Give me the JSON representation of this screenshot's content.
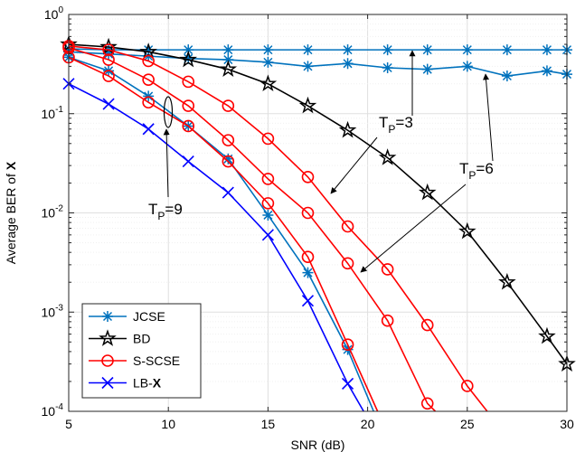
{
  "chart_data": {
    "type": "line",
    "xlabel": "SNR (dB)",
    "ylabel_prefix": "Average BER of ",
    "ylabel_bold": "X",
    "xlim": [
      5,
      30
    ],
    "ylim": [
      0.0001,
      1
    ],
    "yscale": "log",
    "grid": true,
    "legend_position": "bottom-left",
    "x_ticks": [
      5,
      10,
      15,
      20,
      25,
      30
    ],
    "y_ticks": [
      {
        "value": 0.0001,
        "base": "10",
        "exp": "-4"
      },
      {
        "value": 0.001,
        "base": "10",
        "exp": "-3"
      },
      {
        "value": 0.01,
        "base": "10",
        "exp": "-2"
      },
      {
        "value": 0.1,
        "base": "10",
        "exp": "-1"
      },
      {
        "value": 1,
        "base": "10",
        "exp": "0"
      }
    ],
    "series": [
      {
        "name": "JCSE",
        "color": "#0072BD",
        "marker": "asterisk",
        "variant": "T_P=3",
        "x": [
          5,
          7,
          9,
          11,
          13,
          15,
          17,
          19,
          21,
          23,
          25,
          27,
          29,
          30
        ],
        "y": [
          0.45,
          0.44,
          0.44,
          0.44,
          0.44,
          0.44,
          0.44,
          0.44,
          0.44,
          0.44,
          0.44,
          0.44,
          0.44,
          0.44
        ]
      },
      {
        "name": "JCSE",
        "color": "#0072BD",
        "marker": "asterisk",
        "variant": "T_P=6",
        "x": [
          5,
          7,
          9,
          11,
          13,
          15,
          17,
          19,
          21,
          23,
          25,
          27,
          29,
          30
        ],
        "y": [
          0.42,
          0.4,
          0.38,
          0.36,
          0.35,
          0.33,
          0.3,
          0.32,
          0.29,
          0.28,
          0.3,
          0.24,
          0.27,
          0.25
        ]
      },
      {
        "name": "JCSE",
        "color": "#0072BD",
        "marker": "asterisk",
        "variant": "T_P=9",
        "x": [
          5,
          7,
          9,
          11,
          13,
          15,
          17,
          19,
          20.3
        ],
        "y": [
          0.37,
          0.27,
          0.15,
          0.075,
          0.035,
          0.0095,
          0.0025,
          0.00042,
          0.0001
        ]
      },
      {
        "name": "BD",
        "color": "#000000",
        "marker": "star",
        "variant": "",
        "x": [
          5,
          7,
          9,
          11,
          13,
          15,
          17,
          19,
          21,
          23,
          25,
          27,
          29,
          30
        ],
        "y": [
          0.5,
          0.47,
          0.42,
          0.35,
          0.28,
          0.2,
          0.12,
          0.068,
          0.036,
          0.016,
          0.0065,
          0.002,
          0.00057,
          0.0003
        ]
      },
      {
        "name": "S-SCSE",
        "color": "#FF0000",
        "marker": "circle",
        "variant": "T_P=3",
        "x": [
          5,
          7,
          9,
          11,
          13,
          15,
          17,
          19,
          21,
          23,
          25,
          26
        ],
        "y": [
          0.48,
          0.44,
          0.34,
          0.21,
          0.12,
          0.056,
          0.023,
          0.0073,
          0.0027,
          0.00074,
          0.00018,
          0.0001
        ]
      },
      {
        "name": "S-SCSE",
        "color": "#FF0000",
        "marker": "circle",
        "variant": "T_P=6",
        "x": [
          5,
          7,
          9,
          11,
          13,
          15,
          17,
          19,
          21,
          23,
          23.4
        ],
        "y": [
          0.46,
          0.35,
          0.22,
          0.12,
          0.054,
          0.022,
          0.01,
          0.0031,
          0.00082,
          0.00012,
          0.0001
        ]
      },
      {
        "name": "S-SCSE",
        "color": "#FF0000",
        "marker": "circle",
        "variant": "T_P=9",
        "x": [
          5,
          7,
          9,
          11,
          13,
          15,
          17,
          19,
          20.5
        ],
        "y": [
          0.37,
          0.24,
          0.13,
          0.075,
          0.033,
          0.0125,
          0.0036,
          0.00047,
          0.0001
        ]
      },
      {
        "name": "LB-X",
        "color": "#0000FF",
        "marker": "x",
        "variant": "",
        "x": [
          5,
          7,
          9,
          11,
          13,
          15,
          17,
          19,
          19.8
        ],
        "y": [
          0.2,
          0.125,
          0.07,
          0.033,
          0.016,
          0.006,
          0.0013,
          0.00019,
          0.0001
        ]
      }
    ],
    "legend": [
      {
        "label": "JCSE",
        "bold_suffix": "",
        "color": "#0072BD",
        "marker": "asterisk"
      },
      {
        "label": "BD",
        "bold_suffix": "",
        "color": "#000000",
        "marker": "star"
      },
      {
        "label": "S-SCSE",
        "bold_suffix": "",
        "color": "#FF0000",
        "marker": "circle"
      },
      {
        "label": "LB-",
        "bold_suffix": "X",
        "color": "#0000FF",
        "marker": "x"
      }
    ],
    "annotations": [
      {
        "label": "T",
        "sub": "P",
        "value": "=3"
      },
      {
        "label": "T",
        "sub": "P",
        "value": "=6"
      },
      {
        "label": "T",
        "sub": "P",
        "value": "=9"
      }
    ]
  }
}
